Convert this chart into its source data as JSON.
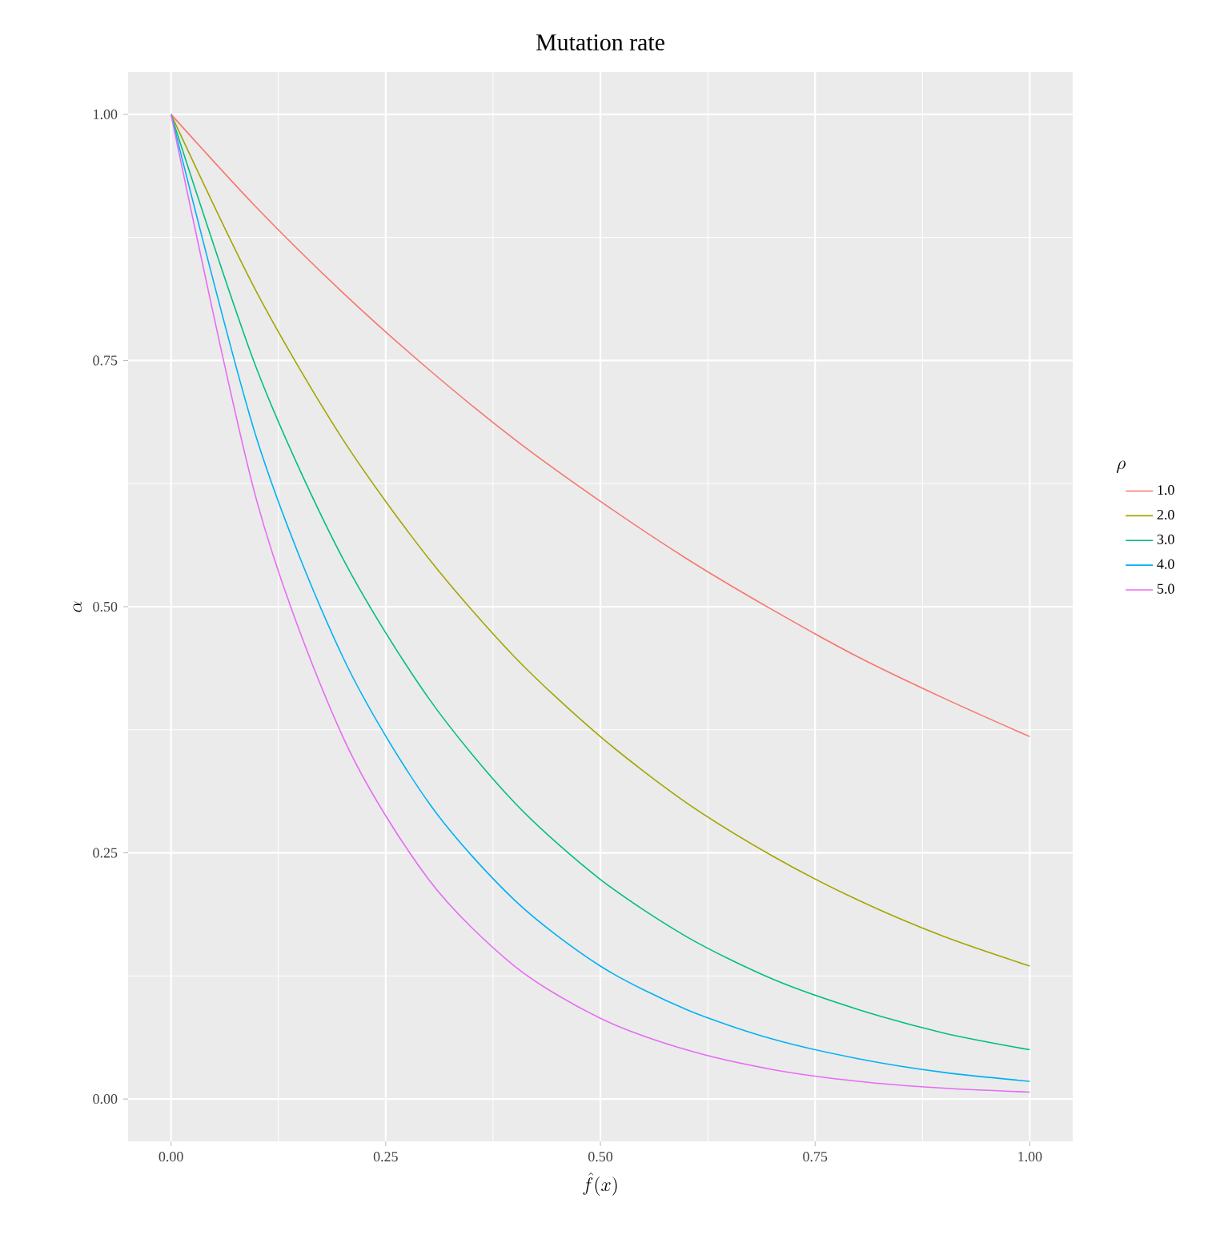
{
  "chart_data": {
    "type": "line",
    "title": "Mutation rate",
    "xlabel": "\\hat{f}(x)",
    "ylabel": "\\alpha",
    "legend_title": "\\rho",
    "x": [
      0,
      0.1,
      0.2,
      0.3,
      0.4,
      0.5,
      0.6,
      0.7,
      0.8,
      0.9,
      1.0
    ],
    "series": [
      {
        "name": "1.0",
        "color": "#f8766d",
        "values": [
          1,
          0.905,
          0.819,
          0.741,
          0.67,
          0.607,
          0.549,
          0.497,
          0.449,
          0.407,
          0.368
        ]
      },
      {
        "name": "2.0",
        "color": "#a3a500",
        "values": [
          1,
          0.819,
          0.67,
          0.549,
          0.449,
          0.368,
          0.301,
          0.247,
          0.202,
          0.165,
          0.135
        ]
      },
      {
        "name": "3.0",
        "color": "#00bf7d",
        "values": [
          1,
          0.741,
          0.549,
          0.407,
          0.301,
          0.223,
          0.165,
          0.122,
          0.091,
          0.067,
          0.05
        ]
      },
      {
        "name": "4.0",
        "color": "#00b0f6",
        "values": [
          1,
          0.67,
          0.449,
          0.301,
          0.202,
          0.135,
          0.091,
          0.061,
          0.041,
          0.027,
          0.018
        ]
      },
      {
        "name": "5.0",
        "color": "#e76bf3",
        "values": [
          1,
          0.607,
          0.368,
          0.223,
          0.135,
          0.082,
          0.05,
          0.03,
          0.018,
          0.011,
          0.007
        ]
      }
    ],
    "xlim": [
      -0.05,
      1.05
    ],
    "ylim": [
      -0.043,
      1.043
    ],
    "xticks": [
      {
        "value": 0,
        "label": "0.00"
      },
      {
        "value": 0.25,
        "label": "0.25"
      },
      {
        "value": 0.5,
        "label": "0.50"
      },
      {
        "value": 0.75,
        "label": "0.75"
      },
      {
        "value": 1,
        "label": "1.00"
      }
    ],
    "yticks": [
      {
        "value": 0,
        "label": "0.00"
      },
      {
        "value": 0.25,
        "label": "0.25"
      },
      {
        "value": 0.5,
        "label": "0.50"
      },
      {
        "value": 0.75,
        "label": "0.75"
      },
      {
        "value": 1,
        "label": "1.00"
      }
    ],
    "grid": true,
    "legend": "right",
    "marker": "none",
    "line_style": "solid"
  }
}
